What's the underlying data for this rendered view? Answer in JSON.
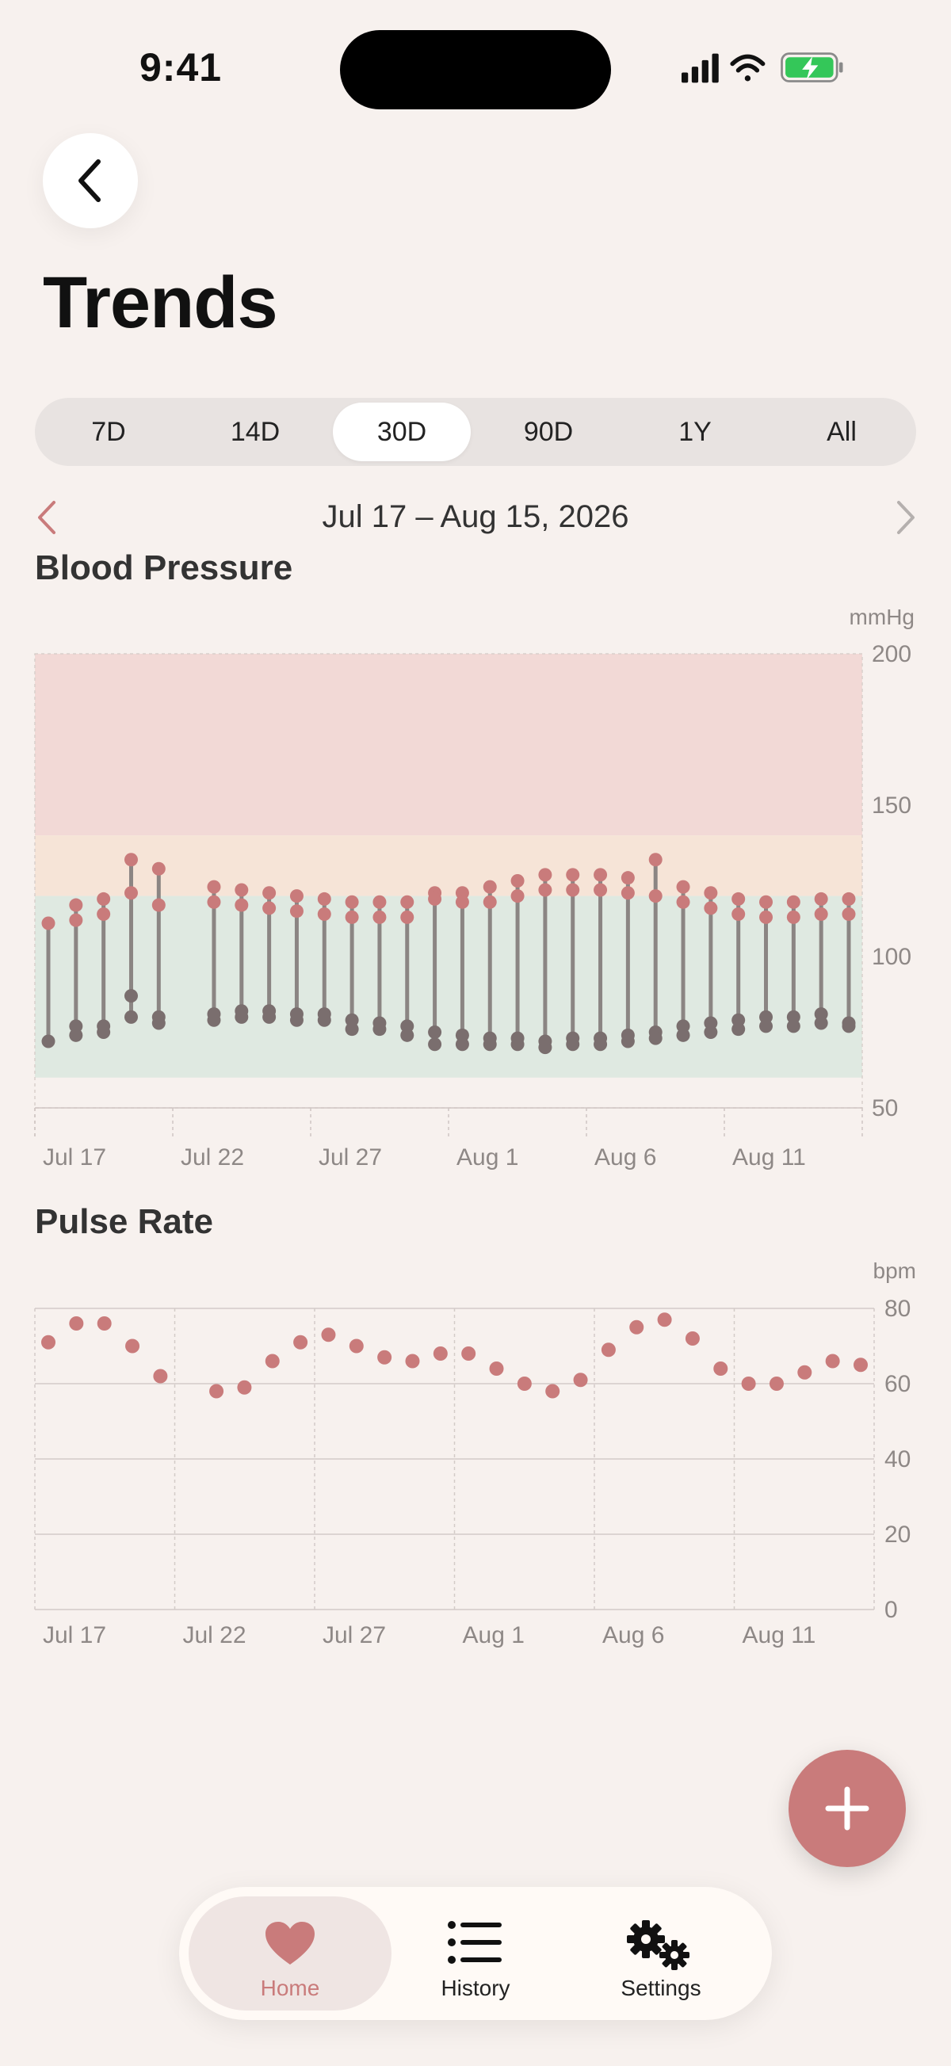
{
  "status_bar": {
    "time": "9:41"
  },
  "page": {
    "title": "Trends"
  },
  "range_tabs": [
    {
      "label": "7D",
      "active": false
    },
    {
      "label": "14D",
      "active": false
    },
    {
      "label": "30D",
      "active": true
    },
    {
      "label": "90D",
      "active": false
    },
    {
      "label": "1Y",
      "active": false
    },
    {
      "label": "All",
      "active": false
    }
  ],
  "date_range": {
    "label": "Jul 17 – Aug 15, 2026"
  },
  "colors": {
    "accent": "#c97b7b",
    "diastolic": "#7a6e6e",
    "zone_high": "#f2d9d6",
    "zone_elevated": "#f6e4d7",
    "zone_normal": "#dfe9e1"
  },
  "blood_pressure": {
    "title": "Blood Pressure",
    "chart_data": {
      "type": "range",
      "unit": "mmHg",
      "ylim": [
        50,
        200
      ],
      "yticks": [
        200,
        150,
        100,
        50
      ],
      "xticks": [
        "Jul 17",
        "Jul 22",
        "Jul 27",
        "Aug 1",
        "Aug 6",
        "Aug 11"
      ],
      "zones": [
        {
          "from": 140,
          "to": 200,
          "level": "high"
        },
        {
          "from": 120,
          "to": 140,
          "level": "elevated"
        },
        {
          "from": 60,
          "to": 120,
          "level": "normal"
        }
      ],
      "days": [
        {
          "x": 1,
          "readings": [
            {
              "sys": 111,
              "dia": 72
            }
          ]
        },
        {
          "x": 2,
          "readings": [
            {
              "sys": 117,
              "dia": 77
            },
            {
              "sys": 112,
              "dia": 74
            }
          ]
        },
        {
          "x": 3,
          "readings": [
            {
              "sys": 119,
              "dia": 77
            },
            {
              "sys": 114,
              "dia": 75
            }
          ]
        },
        {
          "x": 4,
          "readings": [
            {
              "sys": 132,
              "dia": 87
            },
            {
              "sys": 121,
              "dia": 80
            }
          ]
        },
        {
          "x": 5,
          "readings": [
            {
              "sys": 129,
              "dia": 80
            },
            {
              "sys": 117,
              "dia": 78
            }
          ]
        },
        {
          "x": 7,
          "readings": [
            {
              "sys": 123,
              "dia": 81
            },
            {
              "sys": 118,
              "dia": 79
            }
          ]
        },
        {
          "x": 8,
          "readings": [
            {
              "sys": 122,
              "dia": 82
            },
            {
              "sys": 117,
              "dia": 80
            }
          ]
        },
        {
          "x": 9,
          "readings": [
            {
              "sys": 121,
              "dia": 82
            },
            {
              "sys": 116,
              "dia": 80
            }
          ]
        },
        {
          "x": 10,
          "readings": [
            {
              "sys": 120,
              "dia": 81
            },
            {
              "sys": 115,
              "dia": 79
            }
          ]
        },
        {
          "x": 11,
          "readings": [
            {
              "sys": 119,
              "dia": 81
            },
            {
              "sys": 114,
              "dia": 79
            }
          ]
        },
        {
          "x": 12,
          "readings": [
            {
              "sys": 118,
              "dia": 79
            },
            {
              "sys": 113,
              "dia": 76
            }
          ]
        },
        {
          "x": 13,
          "readings": [
            {
              "sys": 118,
              "dia": 78
            },
            {
              "sys": 113,
              "dia": 76
            }
          ]
        },
        {
          "x": 14,
          "readings": [
            {
              "sys": 118,
              "dia": 77
            },
            {
              "sys": 113,
              "dia": 74
            }
          ]
        },
        {
          "x": 15,
          "readings": [
            {
              "sys": 121,
              "dia": 75
            },
            {
              "sys": 119,
              "dia": 71
            }
          ]
        },
        {
          "x": 16,
          "readings": [
            {
              "sys": 121,
              "dia": 74
            },
            {
              "sys": 118,
              "dia": 71
            }
          ]
        },
        {
          "x": 17,
          "readings": [
            {
              "sys": 123,
              "dia": 73
            },
            {
              "sys": 118,
              "dia": 71
            }
          ]
        },
        {
          "x": 18,
          "readings": [
            {
              "sys": 125,
              "dia": 73
            },
            {
              "sys": 120,
              "dia": 71
            }
          ]
        },
        {
          "x": 19,
          "readings": [
            {
              "sys": 127,
              "dia": 72
            },
            {
              "sys": 122,
              "dia": 70
            }
          ]
        },
        {
          "x": 20,
          "readings": [
            {
              "sys": 127,
              "dia": 73
            },
            {
              "sys": 122,
              "dia": 71
            }
          ]
        },
        {
          "x": 21,
          "readings": [
            {
              "sys": 127,
              "dia": 73
            },
            {
              "sys": 122,
              "dia": 71
            }
          ]
        },
        {
          "x": 22,
          "readings": [
            {
              "sys": 126,
              "dia": 74
            },
            {
              "sys": 121,
              "dia": 72
            }
          ]
        },
        {
          "x": 23,
          "readings": [
            {
              "sys": 132,
              "dia": 75
            },
            {
              "sys": 120,
              "dia": 73
            }
          ]
        },
        {
          "x": 24,
          "readings": [
            {
              "sys": 123,
              "dia": 77
            },
            {
              "sys": 118,
              "dia": 74
            }
          ]
        },
        {
          "x": 25,
          "readings": [
            {
              "sys": 121,
              "dia": 78
            },
            {
              "sys": 116,
              "dia": 75
            }
          ]
        },
        {
          "x": 26,
          "readings": [
            {
              "sys": 119,
              "dia": 79
            },
            {
              "sys": 114,
              "dia": 76
            }
          ]
        },
        {
          "x": 27,
          "readings": [
            {
              "sys": 118,
              "dia": 80
            },
            {
              "sys": 113,
              "dia": 77
            }
          ]
        },
        {
          "x": 28,
          "readings": [
            {
              "sys": 118,
              "dia": 80
            },
            {
              "sys": 113,
              "dia": 77
            }
          ]
        },
        {
          "x": 29,
          "readings": [
            {
              "sys": 119,
              "dia": 81
            },
            {
              "sys": 114,
              "dia": 78
            }
          ]
        },
        {
          "x": 30,
          "readings": [
            {
              "sys": 119,
              "dia": 78
            },
            {
              "sys": 114,
              "dia": 77
            }
          ]
        }
      ]
    }
  },
  "pulse_rate": {
    "title": "Pulse Rate",
    "chart_data": {
      "type": "scatter",
      "unit": "bpm",
      "ylim": [
        0,
        80
      ],
      "yticks": [
        80,
        60,
        40,
        20,
        0
      ],
      "xticks": [
        "Jul 17",
        "Jul 22",
        "Jul 27",
        "Aug 1",
        "Aug 6",
        "Aug 11"
      ],
      "x": [
        1,
        2,
        3,
        4,
        5,
        7,
        8,
        9,
        10,
        11,
        12,
        13,
        14,
        15,
        16,
        17,
        18,
        19,
        20,
        21,
        22,
        23,
        24,
        25,
        26,
        27,
        28,
        29,
        30
      ],
      "values": [
        71,
        76,
        76,
        70,
        62,
        58,
        59,
        66,
        71,
        73,
        70,
        67,
        66,
        68,
        68,
        64,
        60,
        58,
        61,
        69,
        75,
        77,
        72,
        64,
        60,
        60,
        63,
        66,
        65
      ]
    }
  },
  "tab_bar": {
    "items": [
      {
        "label": "Home",
        "icon": "heart-icon",
        "active": true
      },
      {
        "label": "History",
        "icon": "list-icon",
        "active": false
      },
      {
        "label": "Settings",
        "icon": "gears-icon",
        "active": false
      }
    ]
  },
  "fab": {
    "icon": "plus-icon"
  }
}
